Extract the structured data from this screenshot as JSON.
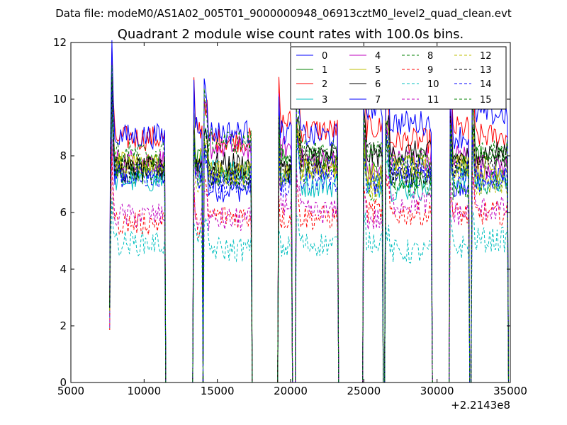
{
  "suptitle": "Data file: modeM0/AS1A02_005T01_9000000948_06913cztM0_level2_quad_clean.evt",
  "title": "Quadrant 2 module wise count rates with 100.0s bins.",
  "offset_label": "+2.2143e8",
  "chart_data": {
    "type": "line",
    "title": "Quadrant 2 module wise count rates with 100.0s bins.",
    "x_offset_label": "+2.2143e8",
    "xlim": [
      5000,
      35000
    ],
    "ylim": [
      0,
      12
    ],
    "xticks": [
      5000,
      10000,
      15000,
      20000,
      25000,
      30000,
      35000
    ],
    "yticks": [
      0,
      2,
      4,
      6,
      8,
      10,
      12
    ],
    "legend_placement": "top-right",
    "legend_columns": 4,
    "active_segments": [
      [
        7700,
        11400
      ],
      [
        13400,
        13950
      ],
      [
        14100,
        17300
      ],
      [
        19200,
        20050
      ],
      [
        20400,
        23200
      ],
      [
        25000,
        26250
      ],
      [
        26500,
        29600
      ],
      [
        30900,
        32150
      ],
      [
        32400,
        34800
      ]
    ],
    "series": [
      {
        "name": "0",
        "color": "#0000ff",
        "dash": "solid",
        "level": 6.9
      },
      {
        "name": "1",
        "color": "#008000",
        "dash": "solid",
        "level": 7.4
      },
      {
        "name": "2",
        "color": "#ff0000",
        "dash": "solid",
        "level": 8.5
      },
      {
        "name": "3",
        "color": "#00bfbf",
        "dash": "solid",
        "level": 7.0
      },
      {
        "name": "4",
        "color": "#bf00bf",
        "dash": "solid",
        "level": 7.6
      },
      {
        "name": "5",
        "color": "#bfbf00",
        "dash": "solid",
        "level": 7.2
      },
      {
        "name": "6",
        "color": "#000000",
        "dash": "solid",
        "level": 7.5
      },
      {
        "name": "7",
        "color": "#0000ff",
        "dash": "solid",
        "level": 8.9
      },
      {
        "name": "8",
        "color": "#008000",
        "dash": "dashed",
        "level": 6.8
      },
      {
        "name": "9",
        "color": "#ff0000",
        "dash": "dashed",
        "level": 5.6
      },
      {
        "name": "10",
        "color": "#00bfbf",
        "dash": "dashed",
        "level": 4.7
      },
      {
        "name": "11",
        "color": "#bf00bf",
        "dash": "dashed",
        "level": 5.8
      },
      {
        "name": "12",
        "color": "#bfbf00",
        "dash": "dashed",
        "level": 7.0
      },
      {
        "name": "13",
        "color": "#000000",
        "dash": "dashed",
        "level": 7.4
      },
      {
        "name": "14",
        "color": "#0000ff",
        "dash": "dashed",
        "level": 7.1
      },
      {
        "name": "15",
        "color": "#008000",
        "dash": "dashed",
        "level": 7.8
      }
    ]
  }
}
